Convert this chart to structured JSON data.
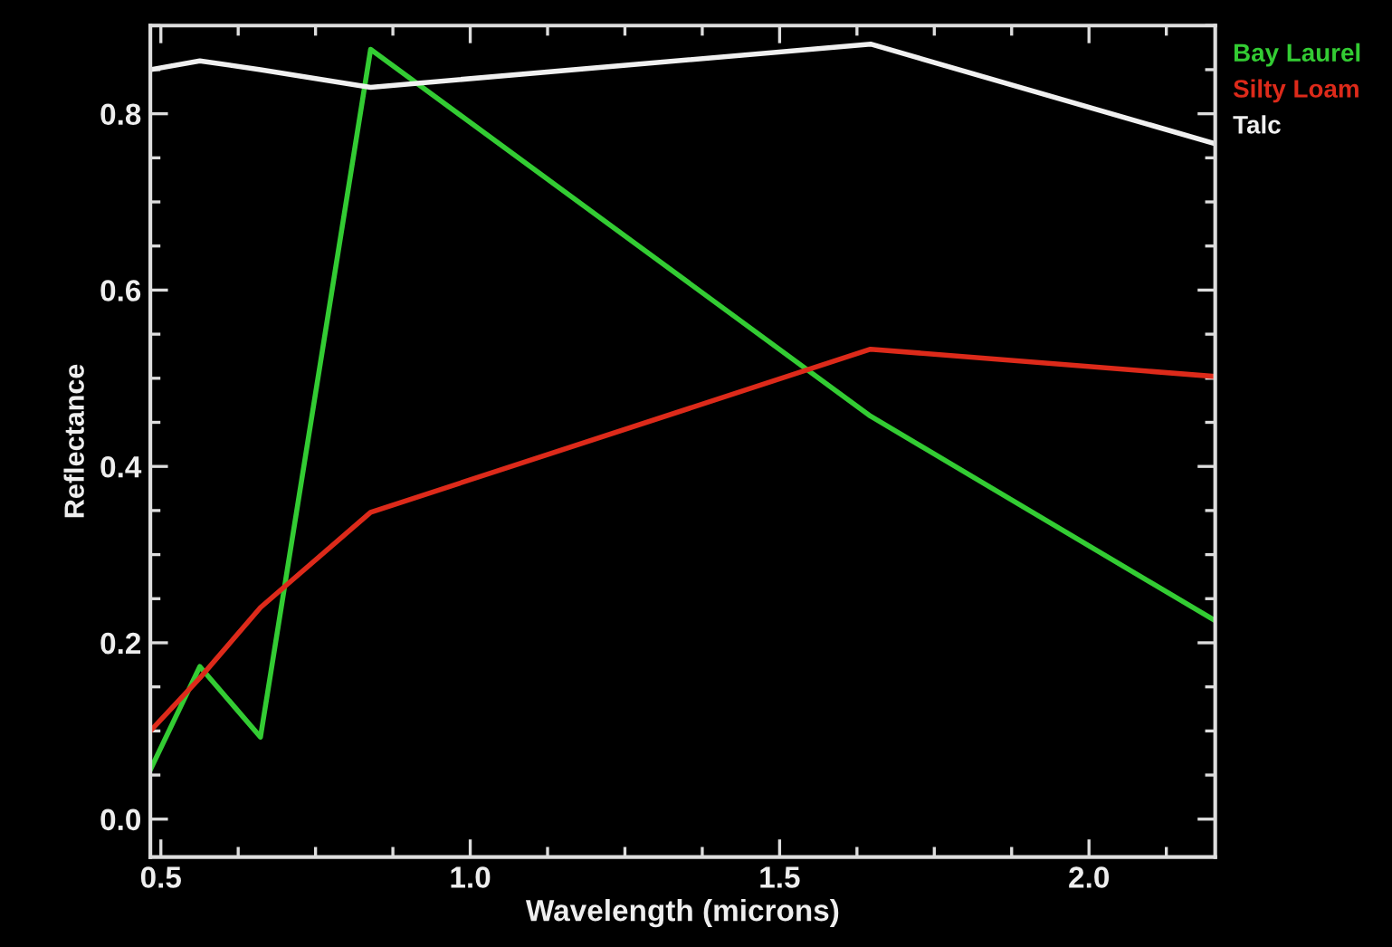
{
  "chart_data": {
    "type": "line",
    "xlabel": "Wavelength (microns)",
    "ylabel": "Reflectance",
    "x": [
      0.483,
      0.563,
      0.661,
      0.839,
      1.647,
      2.204
    ],
    "series": [
      {
        "name": "Bay Laurel",
        "color": "#33cc33",
        "values": [
          0.056,
          0.173,
          0.093,
          0.873,
          0.457,
          0.225
        ]
      },
      {
        "name": "Silty Loam",
        "color": "#dd2a1a",
        "values": [
          0.1,
          0.16,
          0.24,
          0.348,
          0.533,
          0.502
        ]
      },
      {
        "name": "Talc",
        "color": "#f0f0f0",
        "values": [
          0.85,
          0.86,
          0.85,
          0.83,
          0.879,
          0.766
        ]
      }
    ],
    "xlim": [
      0.483,
      2.204
    ],
    "ylim": [
      -0.043,
      0.9
    ],
    "xticks": [
      {
        "value": 0.5,
        "label": "0.5"
      },
      {
        "value": 1.0,
        "label": "1.0"
      },
      {
        "value": 1.5,
        "label": "1.5"
      },
      {
        "value": 2.0,
        "label": "2.0"
      }
    ],
    "yticks": [
      {
        "value": 0.0,
        "label": "0.0"
      },
      {
        "value": 0.2,
        "label": "0.2"
      },
      {
        "value": 0.4,
        "label": "0.4"
      },
      {
        "value": 0.6,
        "label": "0.6"
      },
      {
        "value": 0.8,
        "label": "0.8"
      }
    ],
    "grid": false,
    "legend": "top right",
    "marker": "none",
    "line_style": "solid"
  }
}
